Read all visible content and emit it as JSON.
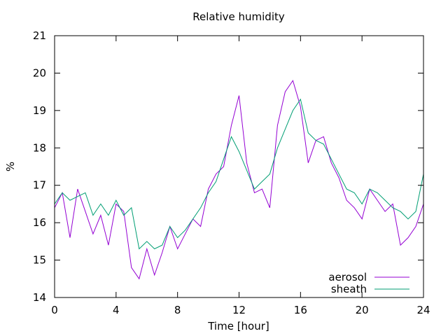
{
  "chart_data": {
    "type": "line",
    "title": "Relative humidity",
    "xlabel": "Time [hour]",
    "ylabel": "%",
    "xlim": [
      0,
      24
    ],
    "ylim": [
      14,
      21
    ],
    "xticks": [
      0,
      4,
      8,
      12,
      16,
      20,
      24
    ],
    "yticks": [
      14,
      15,
      16,
      17,
      18,
      19,
      20,
      21
    ],
    "grid": false,
    "legend": "bottom-right",
    "x": [
      0,
      0.5,
      1,
      1.5,
      2,
      2.5,
      3,
      3.5,
      4,
      4.5,
      5,
      5.5,
      6,
      6.5,
      7,
      7.5,
      8,
      8.5,
      9,
      9.5,
      10,
      10.5,
      11,
      11.5,
      12,
      12.5,
      13,
      13.5,
      14,
      14.5,
      15,
      15.5,
      16,
      16.5,
      17,
      17.5,
      18,
      18.5,
      19,
      19.5,
      20,
      20.5,
      21,
      21.5,
      22,
      22.5,
      23,
      23.5,
      24
    ],
    "series": [
      {
        "name": "aerosol",
        "color": "#9400d3",
        "values": [
          16.4,
          16.8,
          15.6,
          16.9,
          16.3,
          15.7,
          16.2,
          15.4,
          16.5,
          16.3,
          14.8,
          14.5,
          15.3,
          14.6,
          15.2,
          15.9,
          15.3,
          15.7,
          16.1,
          15.9,
          16.9,
          17.3,
          17.5,
          18.6,
          19.4,
          17.6,
          16.8,
          16.9,
          16.4,
          18.6,
          19.5,
          19.8,
          19.1,
          17.6,
          18.2,
          18.3,
          17.6,
          17.2,
          16.6,
          16.4,
          16.1,
          16.9,
          16.6,
          16.3,
          16.5,
          15.4,
          15.6,
          15.9,
          16.5
        ]
      },
      {
        "name": "sheath",
        "color": "#009e73",
        "values": [
          16.5,
          16.8,
          16.6,
          16.7,
          16.8,
          16.2,
          16.5,
          16.2,
          16.6,
          16.2,
          16.4,
          15.3,
          15.5,
          15.3,
          15.4,
          15.9,
          15.6,
          15.8,
          16.1,
          16.4,
          16.8,
          17.1,
          17.7,
          18.3,
          17.9,
          17.4,
          16.9,
          17.1,
          17.3,
          18.0,
          18.5,
          19.0,
          19.3,
          18.4,
          18.2,
          18.1,
          17.7,
          17.3,
          16.9,
          16.8,
          16.5,
          16.9,
          16.8,
          16.6,
          16.4,
          16.3,
          16.1,
          16.3,
          17.3
        ]
      }
    ]
  }
}
